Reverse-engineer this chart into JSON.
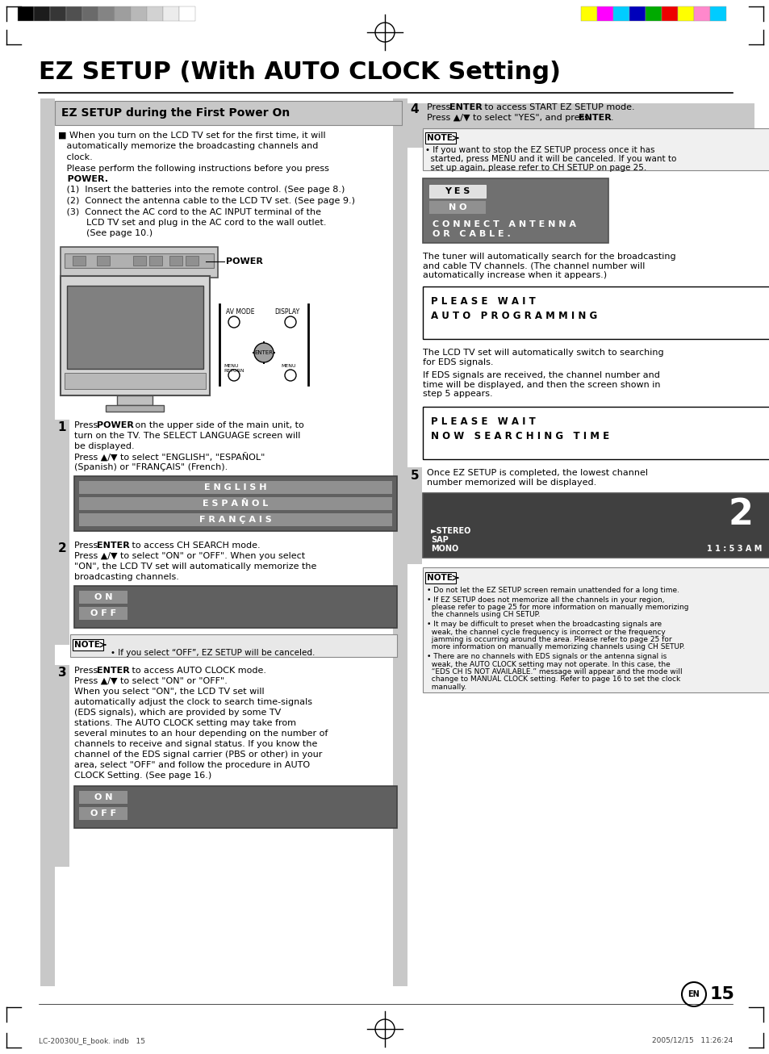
{
  "title": "EZ SETUP (With AUTO CLOCK Setting)",
  "left_section_title": "EZ SETUP during the First Power On",
  "bg_color": "#ffffff",
  "page_number": "15",
  "footer_left": "LC-20030U_E_book. indb   15",
  "footer_right": "2005/12/15   11:26:24",
  "gray_bar_colors": [
    "#000000",
    "#1c1c1c",
    "#363636",
    "#505050",
    "#6a6a6a",
    "#848484",
    "#9e9e9e",
    "#b8b8b8",
    "#d2d2d2",
    "#ececec",
    "#ffffff"
  ],
  "color_bar_colors": [
    "#ffff00",
    "#ff00ff",
    "#00ccff",
    "#0000bb",
    "#00aa00",
    "#ee0000",
    "#ffff00",
    "#ff88cc",
    "#00ccff"
  ],
  "main_intro": "■ When you turn on the LCD TV set for the first time, it will\n  automatically memorize the broadcasting channels and\n  clock.\n  Please perform the following instructions before you press\n  POWER.\n  (1)  Insert the batteries into the remote control. (See page 8.)\n  (2)  Connect the antenna cable to the LCD TV set. (See page 9.)\n  (3)  Connect the AC cord to the AC INPUT terminal of the\n         LCD TV set and plug in the AC cord to the wall outlet.\n         (See page 10.)",
  "note2_text": "If you select “OFF”, EZ SETUP will be canceled.",
  "step3_body": "When you select “ON”, the LCD TV set will\nautomatically adjust the clock to search time-signals\n(EDS signals), which are provided by some TV\nstations. The AUTO CLOCK setting may take from\nseveral minutes to an hour depending on the number of\nchannels to receive and signal status. If you know the\nchannel of the EDS signal carrier (PBS or other) in your\narea, select “OFF” and follow the procedure in AUTO\nCLOCK Setting. (See page 16.)",
  "step4_note": "If you want to stop the EZ SETUP process once it has\nstarted, press MENU and it will be canceled. If you want to\nset up again, please refer to CH SETUP on page 25.",
  "tuner_text": "The tuner will automatically search for the broadcasting\nand cable TV channels. (The channel number will\nautomatically increase when it appears.)",
  "lds_text": "The LCD TV set will automatically switch to searching\nfor EDS signals.",
  "eds_text": "If EDS signals are received, the channel number and\ntime will be displayed, and then the screen shown in\nstep 5 appears.",
  "step5_text": "Once EZ SETUP is completed, the lowest channel\nnumber memorized will be displayed.",
  "note5_texts": [
    "Do not let the EZ SETUP screen remain unattended for a long time.",
    "If EZ SETUP does not memorize all the channels in your region, please refer to page 25 for more information on manually memorizing the channels using CH SETUP.",
    "It may be difficult to preset when the broadcasting signals are weak, the channel cycle frequency is incorrect or the frequency jamming is occurring around the area.  Please refer to page 25 for more information on manually memorizing channels using CH SETUP.",
    "There are no channels with EDS signals or the antenna signal is weak, the AUTO CLOCK setting may not operate. In this case, the “EDS CH IS NOT AVAILABLE.” message will appear and the mode will change to MANUAL CLOCK setting. Refer to page 16 to set the clock manually."
  ]
}
